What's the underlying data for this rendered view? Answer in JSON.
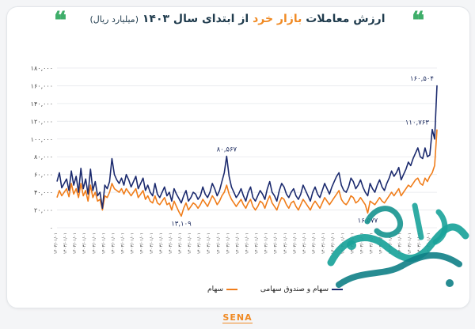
{
  "title": {
    "part1": "ارزش معاملات",
    "part2": "بازار خرد",
    "part3": "از ابتدای سال ۱۴۰۳",
    "unit": "(میلیارد ریال)"
  },
  "quote_glyph": "❝",
  "logo": {
    "name": "SENA"
  },
  "watermark": {
    "text": "صفحه اقتصاد"
  },
  "colors": {
    "navy": "#1b2a6e",
    "orange": "#f07d1a",
    "accent_green": "#3fae6a"
  },
  "chart_data": {
    "type": "line",
    "ylim": [
      0,
      180000
    ],
    "yticks": [
      0,
      20000,
      40000,
      60000,
      80000,
      100000,
      120000,
      140000,
      160000,
      180000
    ],
    "ytick_labels": [
      "۰",
      "۲۰,۰۰۰",
      "۴۰,۰۰۰",
      "۶۰,۰۰۰",
      "۸۰,۰۰۰",
      "۱۰۰,۰۰۰",
      "۱۲۰,۰۰۰",
      "۱۴۰,۰۰۰",
      "۱۶۰,۰۰۰",
      "۱۸۰,۰۰۰"
    ],
    "grid": true,
    "legend": "bottom",
    "x_tick_label": "۱۴۰۳/۰۱/۰۱",
    "annotations": [
      {
        "label": "۱۶۰,۵۰۴",
        "value": 160504
      },
      {
        "label": "۱۱۰,۷۶۳",
        "value": 110763
      },
      {
        "label": "۸۰,۵۶۷",
        "value": 80567
      },
      {
        "label": "۱۳,۱۰۹",
        "value": 13109
      },
      {
        "label": "۱۶,۵۷۷",
        "value": 16577
      }
    ],
    "series": [
      {
        "name": "سهام و صندوق سهامی",
        "color": "#1b2a6e",
        "values": [
          52000,
          62000,
          45000,
          50000,
          55000,
          42000,
          64000,
          48000,
          58000,
          40000,
          67000,
          44000,
          55000,
          38000,
          66000,
          42000,
          52000,
          36000,
          40000,
          22000,
          48000,
          44000,
          52000,
          78000,
          60000,
          54000,
          50000,
          56000,
          48000,
          60000,
          54000,
          46000,
          52000,
          58000,
          44000,
          50000,
          56000,
          42000,
          48000,
          40000,
          36000,
          50000,
          38000,
          34000,
          40000,
          46000,
          36000,
          40000,
          30000,
          44000,
          38000,
          33000,
          28000,
          36000,
          42000,
          30000,
          34000,
          40000,
          38000,
          32000,
          36000,
          46000,
          38000,
          34000,
          40000,
          50000,
          44000,
          36000,
          42000,
          52000,
          62000,
          80567,
          58000,
          46000,
          40000,
          34000,
          38000,
          44000,
          36000,
          30000,
          40000,
          46000,
          34000,
          30000,
          36000,
          42000,
          38000,
          32000,
          44000,
          52000,
          40000,
          36000,
          30000,
          42000,
          50000,
          46000,
          38000,
          34000,
          40000,
          44000,
          36000,
          32000,
          38000,
          48000,
          42000,
          36000,
          30000,
          40000,
          46000,
          38000,
          34000,
          42000,
          50000,
          44000,
          38000,
          46000,
          52000,
          58000,
          62000,
          48000,
          42000,
          40000,
          46000,
          56000,
          52000,
          44000,
          48000,
          54000,
          46000,
          40000,
          36000,
          50000,
          44000,
          40000,
          48000,
          54000,
          46000,
          42000,
          50000,
          56000,
          64000,
          58000,
          62000,
          68000,
          54000,
          60000,
          66000,
          74000,
          70000,
          78000,
          84000,
          90000,
          80000,
          78000,
          90000,
          80000,
          82000,
          110763,
          100000,
          160504
        ]
      },
      {
        "name": "سهام",
        "color": "#f07d1a",
        "values": [
          34000,
          42000,
          36000,
          40000,
          44000,
          35000,
          50000,
          38000,
          44000,
          34000,
          50000,
          36000,
          42000,
          30000,
          48000,
          34000,
          40000,
          30000,
          32000,
          20000,
          36000,
          34000,
          40000,
          50000,
          44000,
          42000,
          40000,
          44000,
          38000,
          44000,
          40000,
          36000,
          40000,
          44000,
          34000,
          38000,
          42000,
          32000,
          36000,
          30000,
          28000,
          36000,
          28000,
          26000,
          30000,
          34000,
          26000,
          28000,
          20000,
          30000,
          24000,
          18000,
          13109,
          22000,
          28000,
          20000,
          24000,
          28000,
          26000,
          22000,
          26000,
          32000,
          28000,
          24000,
          30000,
          36000,
          32000,
          26000,
          30000,
          36000,
          40000,
          48000,
          38000,
          32000,
          28000,
          24000,
          28000,
          32000,
          26000,
          22000,
          28000,
          32000,
          24000,
          20000,
          24000,
          30000,
          28000,
          22000,
          30000,
          36000,
          28000,
          24000,
          20000,
          28000,
          34000,
          32000,
          26000,
          22000,
          28000,
          30000,
          24000,
          20000,
          26000,
          32000,
          28000,
          24000,
          20000,
          26000,
          30000,
          26000,
          22000,
          28000,
          34000,
          30000,
          26000,
          30000,
          34000,
          38000,
          42000,
          32000,
          28000,
          26000,
          30000,
          36000,
          34000,
          28000,
          30000,
          34000,
          30000,
          26000,
          16577,
          30000,
          28000,
          26000,
          30000,
          34000,
          30000,
          28000,
          32000,
          36000,
          40000,
          36000,
          40000,
          44000,
          36000,
          40000,
          44000,
          48000,
          46000,
          50000,
          54000,
          56000,
          50000,
          48000,
          56000,
          52000,
          58000,
          62000,
          70000,
          110763
        ]
      }
    ]
  }
}
